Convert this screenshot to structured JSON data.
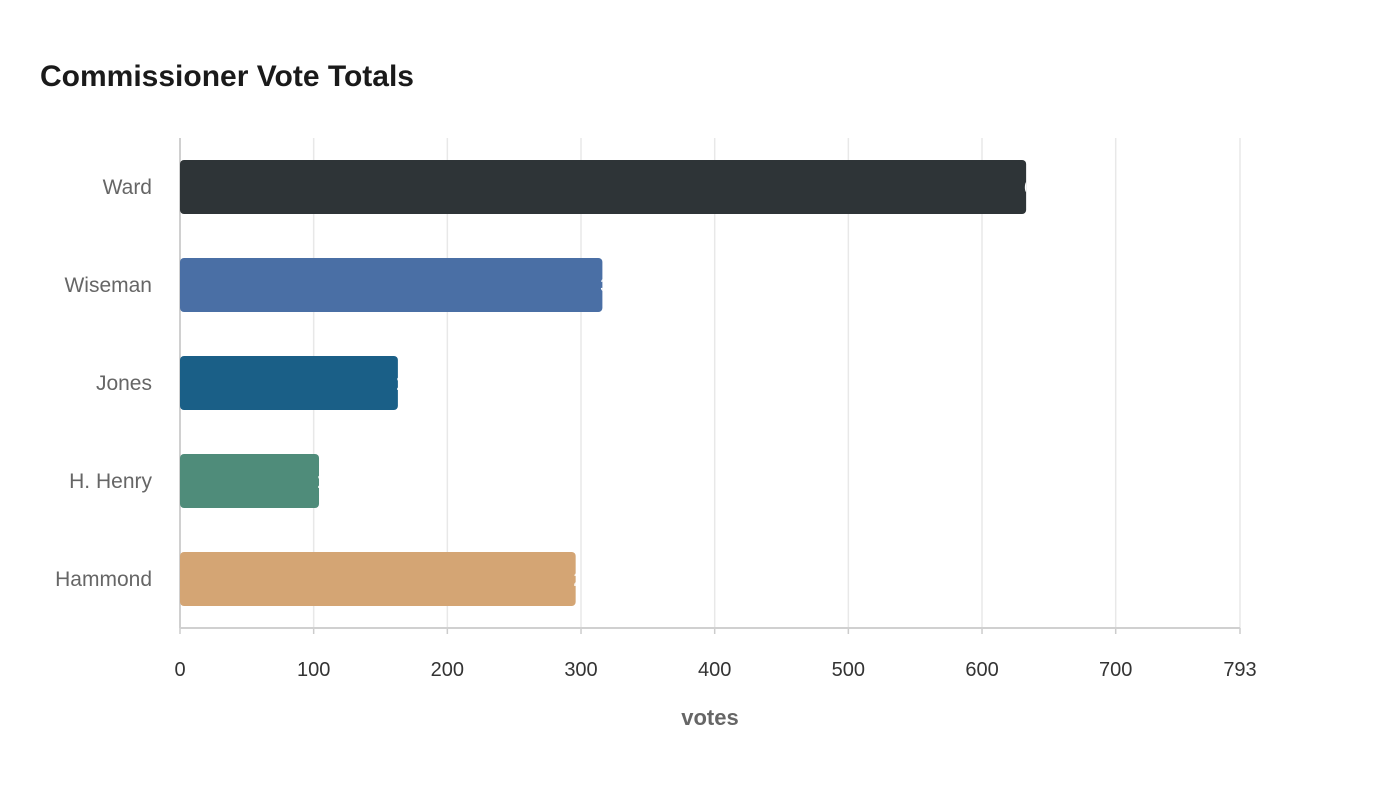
{
  "chart_data": {
    "type": "bar",
    "orientation": "horizontal",
    "title": "Commissioner Vote Totals",
    "xlabel": "votes",
    "ylabel": "",
    "categories": [
      "Ward",
      "Wiseman",
      "Jones",
      "H. Henry",
      "Hammond"
    ],
    "values": [
      633,
      316,
      163,
      104,
      296
    ],
    "colors": [
      "#2e3437",
      "#4a6fa5",
      "#1a5f87",
      "#4f8c7a",
      "#d4a574"
    ],
    "xlim": [
      0,
      793
    ],
    "xticks": [
      0,
      100,
      200,
      300,
      400,
      500,
      600,
      700,
      793
    ],
    "grid": true,
    "legend": "none"
  }
}
